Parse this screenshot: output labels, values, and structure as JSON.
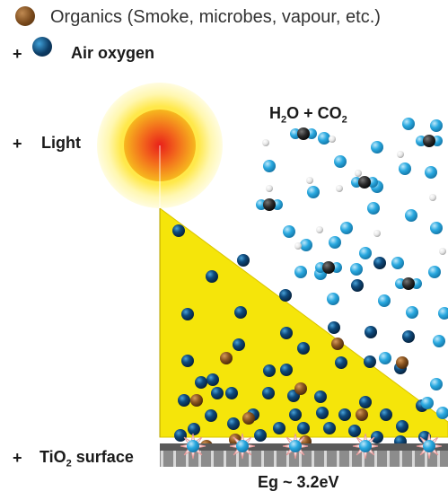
{
  "legend": {
    "organics_label": "Organics (Smoke, microbes, vapour, etc.)",
    "oxygen_plus": "+",
    "oxygen_label": "Air oxygen"
  },
  "light": {
    "plus": "+",
    "label": "Light"
  },
  "products": {
    "h": "H",
    "sub1": "2",
    "o_plus_c": "O + CO",
    "sub2": "2"
  },
  "surface": {
    "plus": "+",
    "tio": "TiO",
    "sub": "2",
    "rest": " surface"
  },
  "bandgap": {
    "label": "Eg ~ 3.2eV"
  },
  "colors": {
    "organic": "#7a4a1c",
    "oxygen_dark": "#0d3d66",
    "oxygen_light": "#2aa9e0",
    "light_cone": "#f5e50a",
    "surface_grey": "#8a8a8a"
  }
}
